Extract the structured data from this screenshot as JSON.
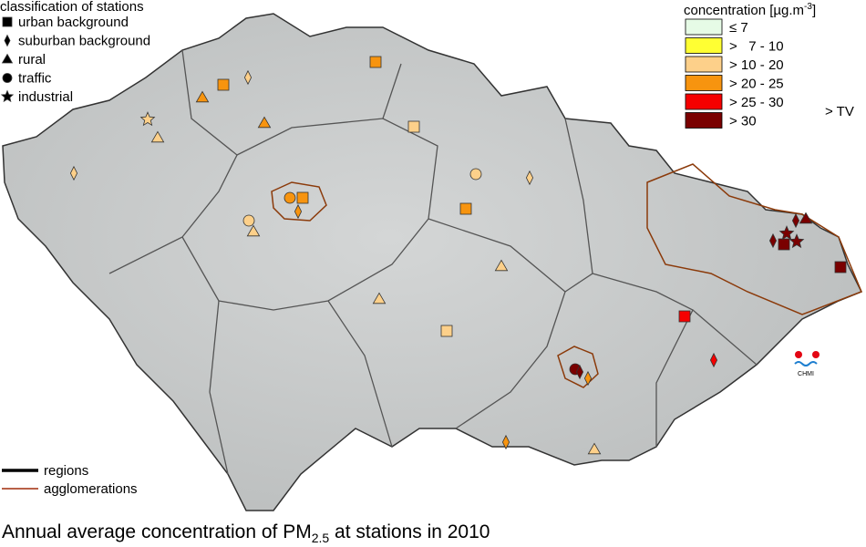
{
  "station_legend": {
    "title": "classification of stations",
    "items": [
      "urban background",
      "suburban background",
      "rural",
      "traffic",
      "industrial"
    ]
  },
  "concentration_legend": {
    "title": "concentration [µg.m",
    "title_sup": "-3",
    "title_end": "]",
    "classes": [
      {
        "label": "≤ 7",
        "color": "#e6fbe6"
      },
      {
        "label": ">   7 - 10",
        "color": "#ffff33"
      },
      {
        "label": "> 10 - 20",
        "color": "#fdd08a"
      },
      {
        "label": "> 20 - 25",
        "color": "#f7940f"
      },
      {
        "label": "> 25 - 30",
        "color": "#f50000"
      },
      {
        "label": "> 30",
        "color": "#7a0000"
      }
    ],
    "limit_note": "> TV"
  },
  "line_legend": [
    "regions",
    "agglomerations"
  ],
  "logo": "CHMI",
  "caption": {
    "text": "Annual average concentration of PM",
    "sub": "2.5",
    "rest": "  at stations in 2010"
  }
}
